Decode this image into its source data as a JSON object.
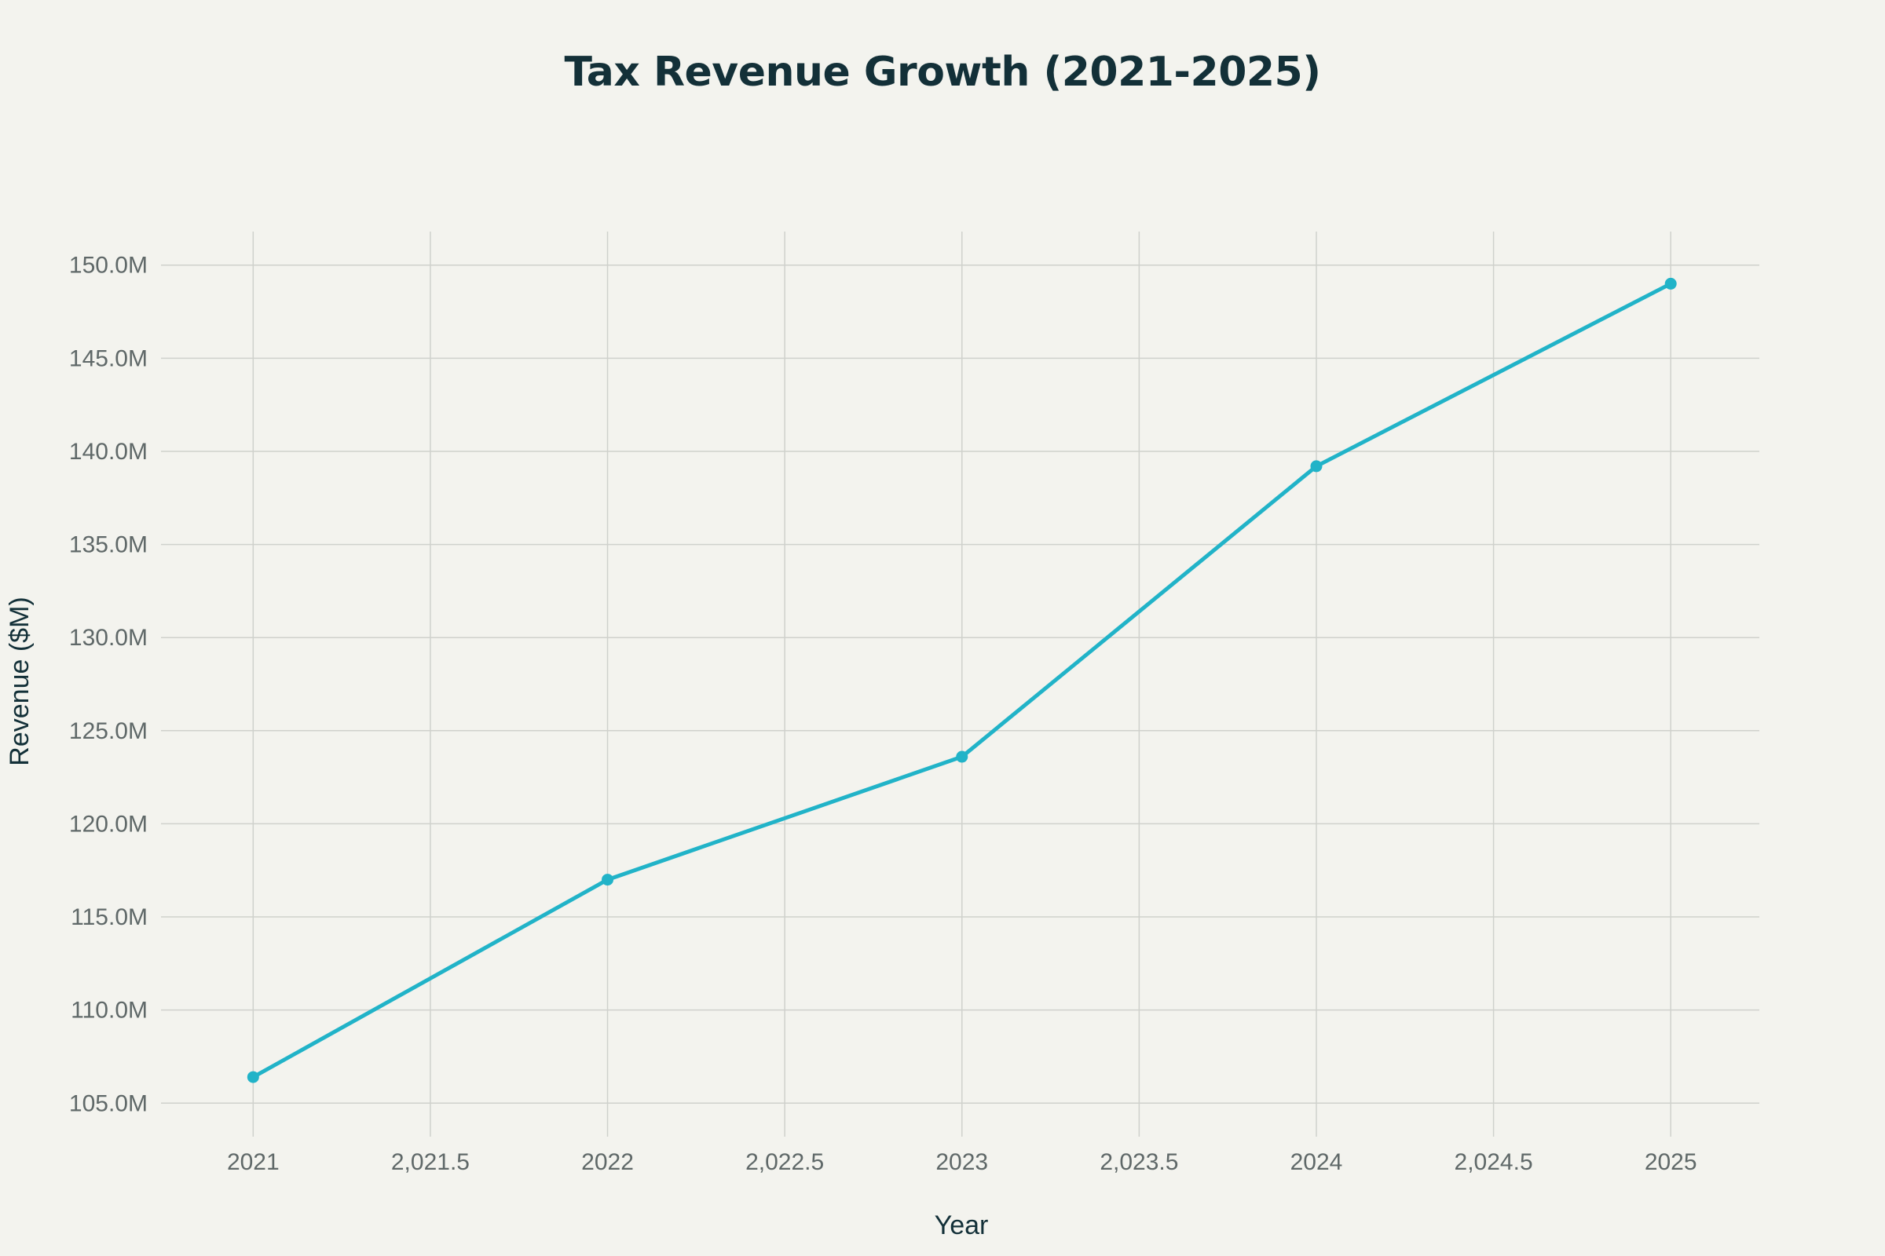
{
  "chart_data": {
    "type": "line",
    "title": "Tax Revenue Growth (2021-2025)",
    "xlabel": "Year",
    "ylabel": "Revenue ($M)",
    "x": [
      2021,
      2022,
      2023,
      2024,
      2025
    ],
    "series": [
      {
        "name": "Tax Revenue",
        "values": [
          106.4,
          117.0,
          123.6,
          139.2,
          149.0
        ],
        "color": "#21b3c8"
      }
    ],
    "xlim": [
      2020.74,
      2025.25
    ],
    "ylim": [
      103.2,
      151.8
    ],
    "xticks": [
      2021,
      2021.5,
      2022,
      2022.5,
      2023,
      2023.5,
      2024,
      2024.5,
      2025
    ],
    "xtick_labels": [
      "2021",
      "2,021.5",
      "2022",
      "2,022.5",
      "2023",
      "2,023.5",
      "2024",
      "2,024.5",
      "2025"
    ],
    "yticks": [
      105,
      110,
      115,
      120,
      125,
      130,
      135,
      140,
      145,
      150
    ],
    "ytick_labels": [
      "105.0M",
      "110.0M",
      "115.0M",
      "120.0M",
      "125.0M",
      "130.0M",
      "135.0M",
      "140.0M",
      "145.0M",
      "150.0M"
    ],
    "grid": true,
    "legend": "none"
  },
  "colors": {
    "background": "#f3f3ee",
    "grid": "#cfd1cc",
    "line": "#21b3c8",
    "title": "#133038",
    "tick": "#5f6868"
  }
}
